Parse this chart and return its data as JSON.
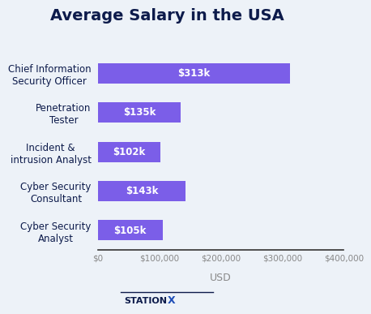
{
  "title": "Average Salary in the USA",
  "categories": [
    "Cyber Security\nAnalyst",
    "Cyber Security\nConsultant",
    "Incident &\nintrusion Analyst",
    "Penetration\nTester",
    "Chief Information\nSecurity Officer"
  ],
  "values": [
    105000,
    143000,
    102000,
    135000,
    313000
  ],
  "labels": [
    "$105k",
    "$143k",
    "$102k",
    "$135k",
    "$313k"
  ],
  "bar_color": "#7B5EE8",
  "background_color": "#EDF2F8",
  "title_color": "#0D1B4B",
  "axis_label_color": "#0D1B4B",
  "tick_color": "#888888",
  "xlabel": "USD",
  "xlim": [
    0,
    400000
  ],
  "xticks": [
    0,
    100000,
    200000,
    300000,
    400000
  ],
  "xtick_labels": [
    "$0",
    "$100,000",
    "$200,000",
    "$300,000",
    "$400,000"
  ],
  "title_fontsize": 14,
  "label_fontsize": 8.5,
  "tick_fontsize": 7.5,
  "bar_label_fontsize": 8.5,
  "xlabel_fontsize": 9,
  "station_color": "#0D1B4B",
  "x_color": "#1E4DB7"
}
